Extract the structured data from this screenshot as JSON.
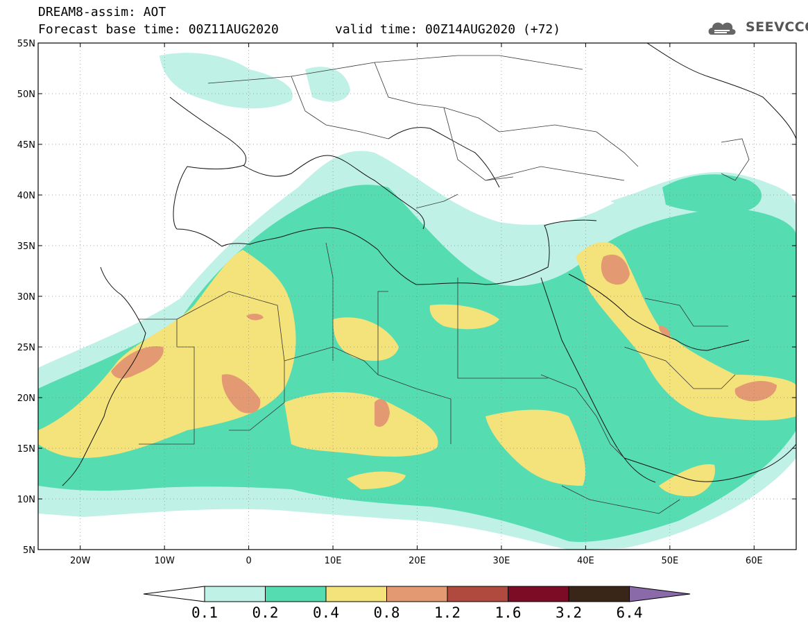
{
  "header": {
    "line1": "DREAM8-assim: AOT",
    "line2": "Forecast base time: 00Z11AUG2020",
    "valid": "valid time: 00Z14AUG2020 (+72)"
  },
  "logo": {
    "text": "SEEVCCC",
    "icon": "cloud-icon"
  },
  "map": {
    "lat_labels": [
      "55N",
      "50N",
      "45N",
      "40N",
      "35N",
      "30N",
      "25N",
      "20N",
      "15N",
      "10N",
      "5N"
    ],
    "lon_labels": [
      "20W",
      "10W",
      "0",
      "10E",
      "20E",
      "30E",
      "40E",
      "50E",
      "60E"
    ],
    "lon_range": [
      -25,
      65
    ],
    "lat_range": [
      5,
      55
    ],
    "gridlines": "dotted"
  },
  "legend": {
    "labels": [
      "0.1",
      "0.2",
      "0.4",
      "0.8",
      "1.2",
      "1.6",
      "3.2",
      "6.4"
    ],
    "colors": [
      "#ffffff",
      "#bff1e6",
      "#56dcb1",
      "#f4e27a",
      "#e39a72",
      "#b04a3f",
      "#7c0b26",
      "#3a2618",
      "#8a6aa8"
    ]
  },
  "colors": {
    "aot_01": "#bff1e6",
    "aot_02": "#56dcb1",
    "aot_04": "#f4e27a",
    "aot_08": "#e39a72",
    "aot_12": "#c76a57"
  }
}
